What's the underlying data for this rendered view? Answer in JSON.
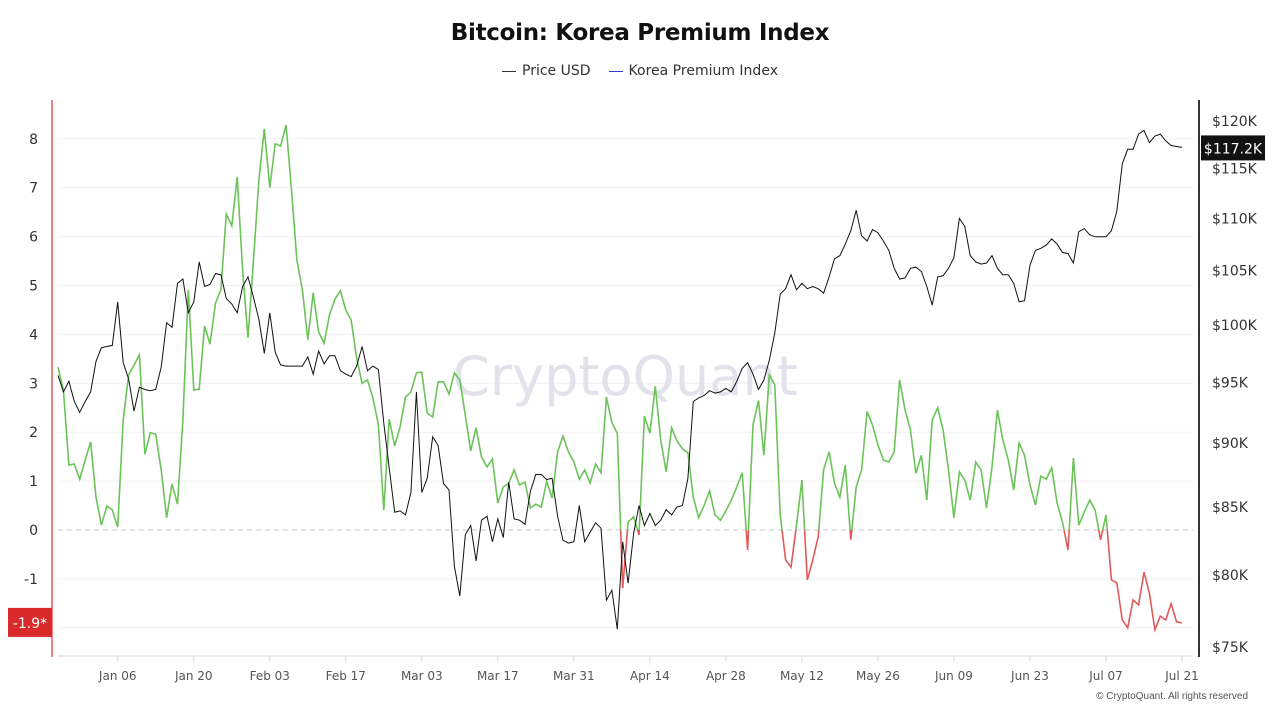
{
  "colors": {
    "price": "#111111",
    "premium_positive": "#6cc35a",
    "premium_negative": "#e05a5a",
    "legend_premium": "#3a3ad6",
    "left_axis": "#e05a5a",
    "watermark": "#e2e2ea"
  },
  "watermark": "CryptoQuant",
  "footer": "© CryptoQuant. All rights reserved",
  "chart_data": {
    "type": "line",
    "title": "Bitcoin: Korea Premium Index",
    "legend": {
      "placement": "top-center",
      "entries": [
        "Price USD",
        "Korea Premium Index"
      ]
    },
    "left_axis": {
      "ylim": [
        -2.6,
        9.3
      ],
      "ticks": [
        "8",
        "7",
        "6",
        "5",
        "4",
        "3",
        "2",
        "1",
        "0",
        "-1"
      ],
      "tick_values": [
        8,
        7,
        6,
        5,
        4,
        3,
        2,
        1,
        0,
        -1
      ],
      "last_value_label": "-1.9*"
    },
    "right_axis": {
      "scale": "log",
      "ylim": [
        75000,
        120000
      ],
      "ticks": [
        "$120K",
        "$115K",
        "$110K",
        "$105K",
        "$100K",
        "$95K",
        "$90K",
        "$85K",
        "$80K",
        "$75K"
      ],
      "tick_values": [
        120000,
        115000,
        110000,
        105000,
        100000,
        95000,
        90000,
        85000,
        80000,
        75000
      ],
      "last_value_label": "$117.2K"
    },
    "x_ticks": [
      "Jan 06",
      "Jan 20",
      "Feb 03",
      "Feb 17",
      "Mar 03",
      "Mar 17",
      "Mar 31",
      "Apr 14",
      "Apr 28",
      "May 12",
      "May 26",
      "Jun 09",
      "Jun 23",
      "Jul 07",
      "Jul 21"
    ],
    "x_tick_dates": [
      "2025-01-06",
      "2025-01-20",
      "2025-02-03",
      "2025-02-17",
      "2025-03-03",
      "2025-03-17",
      "2025-03-31",
      "2025-04-14",
      "2025-04-28",
      "2025-05-12",
      "2025-05-26",
      "2025-06-09",
      "2025-06-23",
      "2025-07-07",
      "2025-07-21"
    ],
    "grid": true,
    "dates": [
      "2024-12-26",
      "2024-12-27",
      "2024-12-28",
      "2024-12-29",
      "2024-12-30",
      "2024-12-31",
      "2025-01-01",
      "2025-01-02",
      "2025-01-03",
      "2025-01-04",
      "2025-01-05",
      "2025-01-06",
      "2025-01-07",
      "2025-01-08",
      "2025-01-09",
      "2025-01-10",
      "2025-01-11",
      "2025-01-12",
      "2025-01-13",
      "2025-01-14",
      "2025-01-15",
      "2025-01-16",
      "2025-01-17",
      "2025-01-18",
      "2025-01-19",
      "2025-01-20",
      "2025-01-21",
      "2025-01-22",
      "2025-01-23",
      "2025-01-24",
      "2025-01-25",
      "2025-01-26",
      "2025-01-27",
      "2025-01-28",
      "2025-01-29",
      "2025-01-30",
      "2025-01-31",
      "2025-02-01",
      "2025-02-02",
      "2025-02-03",
      "2025-02-04",
      "2025-02-05",
      "2025-02-06",
      "2025-02-07",
      "2025-02-08",
      "2025-02-09",
      "2025-02-10",
      "2025-02-11",
      "2025-02-12",
      "2025-02-13",
      "2025-02-14",
      "2025-02-15",
      "2025-02-16",
      "2025-02-17",
      "2025-02-18",
      "2025-02-19",
      "2025-02-20",
      "2025-02-21",
      "2025-02-22",
      "2025-02-23",
      "2025-02-24",
      "2025-02-25",
      "2025-02-26",
      "2025-02-27",
      "2025-02-28",
      "2025-03-01",
      "2025-03-02",
      "2025-03-03",
      "2025-03-04",
      "2025-03-05",
      "2025-03-06",
      "2025-03-07",
      "2025-03-08",
      "2025-03-09",
      "2025-03-10",
      "2025-03-11",
      "2025-03-12",
      "2025-03-13",
      "2025-03-14",
      "2025-03-15",
      "2025-03-16",
      "2025-03-17",
      "2025-03-18",
      "2025-03-19",
      "2025-03-20",
      "2025-03-21",
      "2025-03-22",
      "2025-03-23",
      "2025-03-24",
      "2025-03-25",
      "2025-03-26",
      "2025-03-27",
      "2025-03-28",
      "2025-03-29",
      "2025-03-30",
      "2025-03-31",
      "2025-04-01",
      "2025-04-02",
      "2025-04-03",
      "2025-04-04",
      "2025-04-05",
      "2025-04-06",
      "2025-04-07",
      "2025-04-08",
      "2025-04-09",
      "2025-04-10",
      "2025-04-11",
      "2025-04-12",
      "2025-04-13",
      "2025-04-14",
      "2025-04-15",
      "2025-04-16",
      "2025-04-17",
      "2025-04-18",
      "2025-04-19",
      "2025-04-20",
      "2025-04-21",
      "2025-04-22",
      "2025-04-23",
      "2025-04-24",
      "2025-04-25",
      "2025-04-26",
      "2025-04-27",
      "2025-04-28",
      "2025-04-29",
      "2025-04-30",
      "2025-05-01",
      "2025-05-02",
      "2025-05-03",
      "2025-05-04",
      "2025-05-05",
      "2025-05-06",
      "2025-05-07",
      "2025-05-08",
      "2025-05-09",
      "2025-05-10",
      "2025-05-11",
      "2025-05-12",
      "2025-05-13",
      "2025-05-14",
      "2025-05-15",
      "2025-05-16",
      "2025-05-17",
      "2025-05-18",
      "2025-05-19",
      "2025-05-20",
      "2025-05-21",
      "2025-05-22",
      "2025-05-23",
      "2025-05-24",
      "2025-05-25",
      "2025-05-26",
      "2025-05-27",
      "2025-05-28",
      "2025-05-29",
      "2025-05-30",
      "2025-05-31",
      "2025-06-01",
      "2025-06-02",
      "2025-06-03",
      "2025-06-04",
      "2025-06-05",
      "2025-06-06",
      "2025-06-07",
      "2025-06-08",
      "2025-06-09",
      "2025-06-10",
      "2025-06-11",
      "2025-06-12",
      "2025-06-13",
      "2025-06-14",
      "2025-06-15",
      "2025-06-16",
      "2025-06-17",
      "2025-06-18",
      "2025-06-19",
      "2025-06-20",
      "2025-06-21",
      "2025-06-22",
      "2025-06-23",
      "2025-06-24",
      "2025-06-25",
      "2025-06-26",
      "2025-06-27",
      "2025-06-28",
      "2025-06-29",
      "2025-06-30",
      "2025-07-01",
      "2025-07-02",
      "2025-07-03",
      "2025-07-04",
      "2025-07-05",
      "2025-07-06",
      "2025-07-07",
      "2025-07-08",
      "2025-07-09",
      "2025-07-10",
      "2025-07-11",
      "2025-07-12",
      "2025-07-13",
      "2025-07-14",
      "2025-07-15",
      "2025-07-16",
      "2025-07-17",
      "2025-07-18",
      "2025-07-19",
      "2025-07-20",
      "2025-07-21"
    ],
    "series": [
      {
        "name": "Price USD",
        "axis": "right",
        "values": [
          95600,
          94200,
          95100,
          93400,
          92500,
          93400,
          94200,
          96800,
          98000,
          98100,
          98200,
          102100,
          96700,
          95300,
          92600,
          94600,
          94400,
          94300,
          94400,
          96300,
          100200,
          99800,
          103800,
          104200,
          101100,
          102100,
          105800,
          103500,
          103700,
          104700,
          104600,
          102400,
          101900,
          101100,
          103500,
          104400,
          102500,
          100500,
          97500,
          101100,
          97600,
          96500,
          96400,
          96400,
          96400,
          96400,
          97200,
          95700,
          97700,
          96600,
          97300,
          97300,
          96000,
          95700,
          95500,
          96400,
          98100,
          96000,
          96400,
          96100,
          91600,
          88000,
          84600,
          84700,
          84400,
          86100,
          94200,
          86100,
          87200,
          90500,
          89800,
          86800,
          86300,
          80600,
          78500,
          82900,
          83600,
          81000,
          84000,
          84300,
          82400,
          84100,
          82700,
          86900,
          84100,
          84000,
          83700,
          86200,
          87500,
          87500,
          87100,
          87200,
          84300,
          82500,
          82300,
          82400,
          85100,
          82400,
          83100,
          83800,
          83400,
          78200,
          78900,
          76200,
          82400,
          79400,
          83000,
          85100,
          83600,
          84500,
          83600,
          84000,
          84800,
          84400,
          85000,
          85100,
          87200,
          93400,
          93700,
          93900,
          94300,
          94100,
          94200,
          94500,
          94200,
          95100,
          96200,
          96700,
          95700,
          94400,
          95200,
          96900,
          99300,
          102800,
          103300,
          104600,
          103200,
          103800,
          103300,
          103500,
          103300,
          102900,
          104400,
          106100,
          106400,
          107500,
          108800,
          110800,
          108300,
          107800,
          108900,
          108600,
          107800,
          106900,
          105200,
          104200,
          104300,
          105200,
          105300,
          104900,
          103500,
          101800,
          104400,
          104500,
          105200,
          106200,
          110000,
          109200,
          106400,
          105800,
          105600,
          105700,
          106400,
          105200,
          104600,
          104600,
          103800,
          102100,
          102200,
          105500,
          106900,
          107100,
          107400,
          108000,
          107500,
          106700,
          106600,
          105700,
          108700,
          109000,
          108400,
          108200,
          108200,
          108200,
          108800,
          110700,
          115500,
          117000,
          117000,
          118600,
          119000,
          117700,
          118400,
          118600,
          117900,
          117400,
          117300,
          117200
        ]
      },
      {
        "name": "Korea Premium Index",
        "axis": "left",
        "values": [
          3.33,
          2.86,
          1.33,
          1.35,
          1.04,
          1.43,
          1.8,
          0.67,
          0.1,
          0.49,
          0.41,
          0.06,
          2.25,
          3.17,
          3.37,
          3.58,
          1.55,
          1.99,
          1.96,
          1.23,
          0.25,
          0.94,
          0.53,
          2.25,
          4.91,
          2.86,
          2.88,
          4.17,
          3.8,
          4.64,
          4.91,
          6.46,
          6.22,
          7.22,
          5.32,
          3.93,
          5.52,
          7.16,
          8.2,
          7.0,
          7.9,
          7.85,
          8.28,
          6.95,
          5.52,
          4.91,
          3.89,
          4.85,
          4.05,
          3.82,
          4.4,
          4.72,
          4.89,
          4.5,
          4.29,
          3.52,
          3.0,
          3.07,
          2.7,
          2.15,
          0.41,
          2.27,
          1.72,
          2.11,
          2.72,
          2.82,
          3.21,
          3.23,
          2.39,
          2.31,
          3.03,
          3.03,
          2.78,
          3.21,
          3.07,
          2.35,
          1.62,
          2.09,
          1.49,
          1.29,
          1.45,
          0.55,
          0.88,
          0.96,
          1.23,
          0.92,
          0.98,
          0.45,
          0.53,
          0.47,
          1.0,
          0.65,
          1.6,
          1.92,
          1.6,
          1.39,
          1.04,
          1.23,
          0.96,
          1.35,
          1.17,
          2.72,
          2.19,
          1.98,
          -1.19,
          0.16,
          0.27,
          -0.1,
          2.33,
          1.98,
          2.94,
          1.84,
          1.19,
          2.09,
          1.82,
          1.66,
          1.58,
          0.67,
          0.25,
          0.51,
          0.8,
          0.31,
          0.2,
          0.39,
          0.61,
          0.88,
          1.17,
          -0.41,
          2.15,
          2.65,
          1.53,
          3.17,
          2.97,
          0.31,
          -0.61,
          -0.76,
          0.1,
          1.02,
          -1.02,
          -0.61,
          -0.14,
          1.23,
          1.6,
          0.96,
          0.67,
          1.33,
          -0.2,
          0.88,
          1.23,
          2.42,
          2.15,
          1.74,
          1.43,
          1.39,
          1.6,
          3.07,
          2.45,
          2.04,
          1.16,
          1.53,
          0.61,
          2.25,
          2.5,
          2.04,
          1.23,
          0.25,
          1.19,
          1.02,
          0.61,
          1.39,
          1.23,
          0.45,
          1.29,
          2.45,
          1.84,
          1.43,
          0.82,
          1.78,
          1.53,
          0.92,
          0.51,
          1.1,
          1.04,
          1.27,
          0.55,
          0.16,
          -0.41,
          1.47,
          0.1,
          0.37,
          0.61,
          0.41,
          -0.2,
          0.31,
          -1.02,
          -1.08,
          -1.84,
          -2.0,
          -1.43,
          -1.53,
          -0.86,
          -1.29,
          -2.04,
          -1.76,
          -1.84,
          -1.51,
          -1.88,
          -1.9
        ]
      }
    ]
  }
}
